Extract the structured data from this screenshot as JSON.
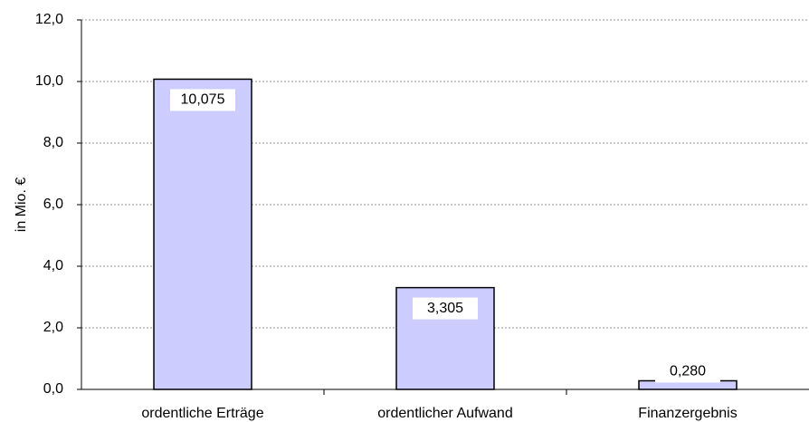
{
  "chart_data": {
    "type": "bar",
    "y_label": "in Mio. €",
    "categories": [
      "ordentliche Erträge",
      "ordentlicher Aufwand",
      "Finanzergebnis"
    ],
    "values": [
      10.075,
      3.305,
      0.28
    ],
    "value_labels": [
      "10,075",
      "3,305",
      "0,280"
    ],
    "color": "#ccccff",
    "ylim": [
      0,
      12
    ],
    "yticks": [
      {
        "value": 0,
        "label": "0,0"
      },
      {
        "value": 2,
        "label": "2,0"
      },
      {
        "value": 4,
        "label": "4,0"
      },
      {
        "value": 6,
        "label": "6,0"
      },
      {
        "value": 8,
        "label": "8,0"
      },
      {
        "value": 10,
        "label": "10,0"
      },
      {
        "value": 12,
        "label": "12,0"
      }
    ],
    "grid": true
  }
}
